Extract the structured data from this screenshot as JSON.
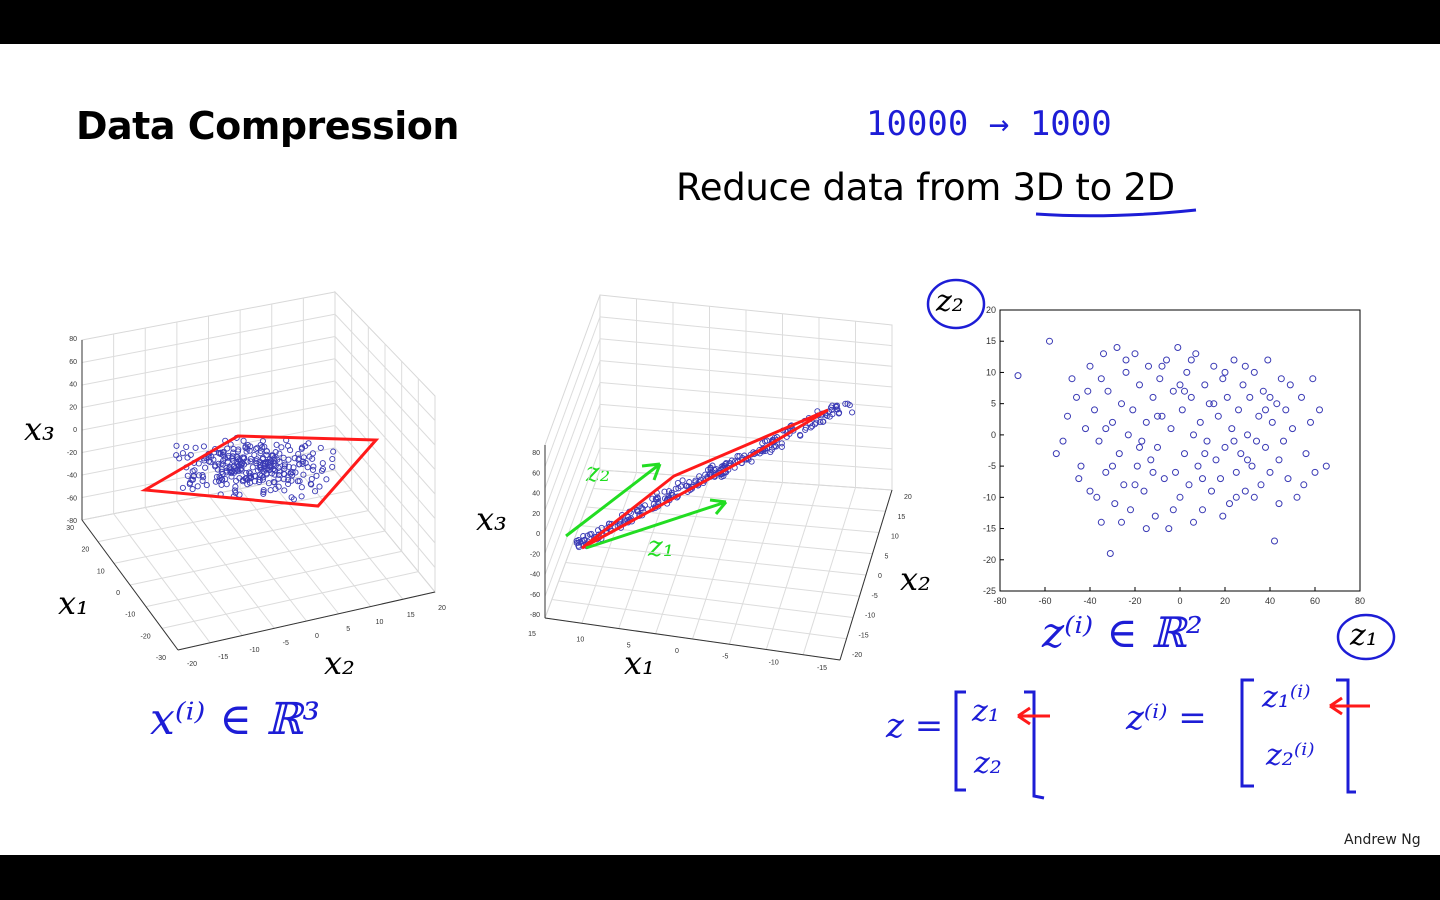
{
  "slide": {
    "title": "Data Compression",
    "subtitle": "Reduce data from 3D to 2D",
    "credit": "Andrew Ng"
  },
  "annotations": {
    "dims_from": "10000",
    "dims_arrow": "→",
    "dims_to": "1000",
    "x_in_r3": "x⁽ⁱ⁾ ∈ ℝ³",
    "z_in_r2": "z⁽ⁱ⁾ ∈ ℝ²",
    "z_vec_lhs": "z =",
    "z_vec_1": "z₁",
    "z_vec_2": "z₂",
    "zi_vec_lhs": "z⁽ⁱ⁾ =",
    "zi_vec_1": "z₁⁽ⁱ⁾",
    "zi_vec_2": "z₂⁽ⁱ⁾",
    "green_z2": "z₂",
    "green_z1": "z₁",
    "colors": {
      "ink_blue": "#1d1dd6",
      "ink_red": "#ff1a1a",
      "ink_green": "#22dd22",
      "points": "#3a3ab5"
    }
  },
  "plot1": {
    "xlabel": "x₁",
    "ylabel": "x₂",
    "zlabel": "x₃",
    "z_ticks": [
      "80",
      "60",
      "40",
      "20",
      "0",
      "-20",
      "-40",
      "-60",
      "-80"
    ],
    "x1_ticks": [
      "30",
      "20",
      "10",
      "0",
      "-10",
      "-20",
      "-30"
    ],
    "x2_ticks": [
      "-20",
      "-15",
      "-10",
      "-5",
      "0",
      "5",
      "10",
      "15",
      "20"
    ]
  },
  "plot2": {
    "xlabel": "x₁",
    "ylabel": "x₂",
    "zlabel": "x₃",
    "z_ticks": [
      "80",
      "60",
      "40",
      "20",
      "0",
      "-20",
      "-40",
      "-60",
      "-80"
    ],
    "x1_ticks": [
      "15",
      "10",
      "5",
      "0",
      "-5",
      "-10",
      "-15"
    ],
    "x2_ticks": [
      "20",
      "15",
      "10",
      "5",
      "0",
      "-5",
      "-10",
      "-15",
      "-20"
    ]
  },
  "chart_data": {
    "type": "scatter",
    "xlabel": "z₁",
    "ylabel": "z₂",
    "xlim": [
      -80,
      80
    ],
    "ylim": [
      -25,
      20
    ],
    "x_ticks": [
      "-80",
      "-60",
      "-40",
      "-20",
      "0",
      "20",
      "40",
      "60",
      "80"
    ],
    "y_ticks": [
      "20",
      "15",
      "10",
      "5",
      "0",
      "-5",
      "-10",
      "-15",
      "-20",
      "-25"
    ],
    "grid": false,
    "points": [
      [
        -72,
        9.5
      ],
      [
        -58,
        15
      ],
      [
        -55,
        -3
      ],
      [
        -50,
        3
      ],
      [
        -48,
        9
      ],
      [
        -46,
        6
      ],
      [
        -44,
        -5
      ],
      [
        -42,
        1
      ],
      [
        -40,
        -9
      ],
      [
        -40,
        11
      ],
      [
        -38,
        4
      ],
      [
        -36,
        -1
      ],
      [
        -35,
        -14
      ],
      [
        -34,
        13
      ],
      [
        -33,
        -6
      ],
      [
        -32,
        7
      ],
      [
        -31,
        -19
      ],
      [
        -30,
        2
      ],
      [
        -29,
        -11
      ],
      [
        -28,
        14
      ],
      [
        -27,
        -3
      ],
      [
        -26,
        5
      ],
      [
        -25,
        -8
      ],
      [
        -24,
        10
      ],
      [
        -23,
        0
      ],
      [
        -22,
        -12
      ],
      [
        -21,
        4
      ],
      [
        -20,
        13
      ],
      [
        -19,
        -5
      ],
      [
        -18,
        8
      ],
      [
        -17,
        -1
      ],
      [
        -16,
        -9
      ],
      [
        -15,
        2
      ],
      [
        -14,
        11
      ],
      [
        -13,
        -4
      ],
      [
        -12,
        6
      ],
      [
        -11,
        -13
      ],
      [
        -10,
        -2
      ],
      [
        -9,
        9
      ],
      [
        -8,
        3
      ],
      [
        -7,
        -7
      ],
      [
        -6,
        12
      ],
      [
        -5,
        -15
      ],
      [
        -4,
        1
      ],
      [
        -3,
        7
      ],
      [
        -2,
        -6
      ],
      [
        -1,
        14
      ],
      [
        0,
        -10
      ],
      [
        1,
        4
      ],
      [
        2,
        -3
      ],
      [
        3,
        10
      ],
      [
        4,
        -8
      ],
      [
        5,
        6
      ],
      [
        6,
        0
      ],
      [
        7,
        13
      ],
      [
        8,
        -5
      ],
      [
        9,
        2
      ],
      [
        10,
        -12
      ],
      [
        11,
        8
      ],
      [
        12,
        -1
      ],
      [
        13,
        5
      ],
      [
        14,
        -9
      ],
      [
        15,
        11
      ],
      [
        16,
        -4
      ],
      [
        17,
        3
      ],
      [
        18,
        -7
      ],
      [
        19,
        9
      ],
      [
        20,
        -2
      ],
      [
        21,
        6
      ],
      [
        22,
        -11
      ],
      [
        23,
        1
      ],
      [
        24,
        12
      ],
      [
        25,
        -6
      ],
      [
        26,
        4
      ],
      [
        27,
        -3
      ],
      [
        28,
        8
      ],
      [
        29,
        -9
      ],
      [
        30,
        0
      ],
      [
        31,
        6
      ],
      [
        32,
        -5
      ],
      [
        33,
        10
      ],
      [
        34,
        -1
      ],
      [
        35,
        3
      ],
      [
        36,
        -8
      ],
      [
        37,
        7
      ],
      [
        38,
        -2
      ],
      [
        39,
        12
      ],
      [
        40,
        -6
      ],
      [
        41,
        2
      ],
      [
        42,
        -17
      ],
      [
        43,
        5
      ],
      [
        44,
        -4
      ],
      [
        45,
        9
      ],
      [
        46,
        -1
      ],
      [
        47,
        4
      ],
      [
        48,
        -7
      ],
      [
        50,
        1
      ],
      [
        52,
        -10
      ],
      [
        54,
        6
      ],
      [
        56,
        -3
      ],
      [
        58,
        2
      ],
      [
        60,
        -6
      ],
      [
        62,
        4
      ],
      [
        65,
        -5
      ],
      [
        -52,
        -1
      ],
      [
        -45,
        -7
      ],
      [
        -41,
        7
      ],
      [
        -37,
        -10
      ],
      [
        -33,
        1
      ],
      [
        -26,
        -14
      ],
      [
        -24,
        12
      ],
      [
        -18,
        -2
      ],
      [
        -12,
        -6
      ],
      [
        -8,
        11
      ],
      [
        -3,
        -12
      ],
      [
        2,
        7
      ],
      [
        6,
        -14
      ],
      [
        11,
        -3
      ],
      [
        15,
        5
      ],
      [
        19,
        -13
      ],
      [
        24,
        -1
      ],
      [
        29,
        11
      ],
      [
        33,
        -10
      ],
      [
        38,
        4
      ],
      [
        44,
        -11
      ],
      [
        49,
        8
      ],
      [
        55,
        -8
      ],
      [
        59,
        9
      ],
      [
        -30,
        -5
      ],
      [
        -20,
        -8
      ],
      [
        -10,
        3
      ],
      [
        0,
        8
      ],
      [
        10,
        -7
      ],
      [
        20,
        10
      ],
      [
        30,
        -4
      ],
      [
        40,
        6
      ],
      [
        -35,
        9
      ],
      [
        -15,
        -15
      ],
      [
        5,
        12
      ],
      [
        25,
        -10
      ]
    ]
  }
}
